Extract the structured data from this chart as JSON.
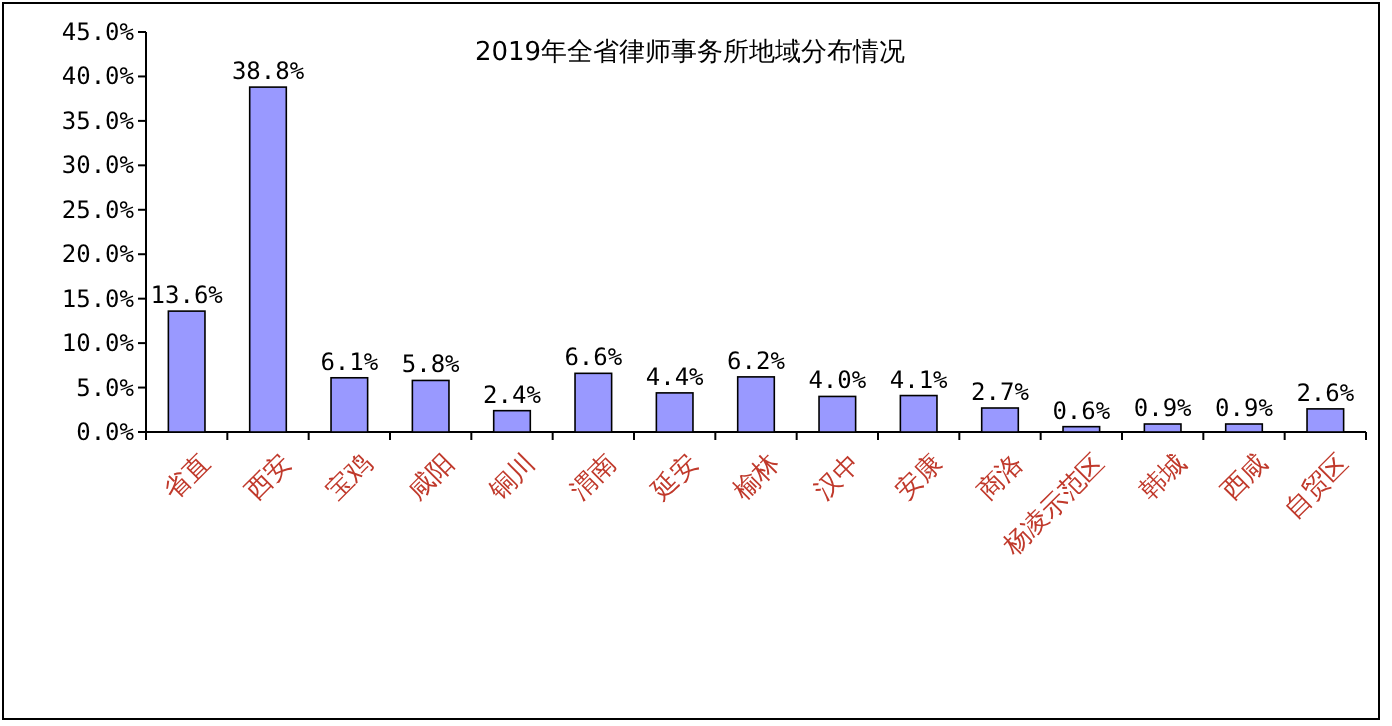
{
  "chart_data": {
    "type": "bar",
    "title": "2019年全省律师事务所地域分布情况",
    "categories": [
      "省直",
      "西安",
      "宝鸡",
      "咸阳",
      "铜川",
      "渭南",
      "延安",
      "榆林",
      "汉中",
      "安康",
      "商洛",
      "杨凌示范区",
      "韩城",
      "西咸",
      "自贸区"
    ],
    "values": [
      13.6,
      38.8,
      6.1,
      5.8,
      2.4,
      6.6,
      4.4,
      6.2,
      4.0,
      4.1,
      2.7,
      0.6,
      0.9,
      0.9,
      2.6
    ],
    "value_labels": [
      "13.6%",
      "38.8%",
      "6.1%",
      "5.8%",
      "2.4%",
      "6.6%",
      "4.4%",
      "6.2%",
      "4.0%",
      "4.1%",
      "2.7%",
      "0.6%",
      "0.9%",
      "0.9%",
      "2.6%"
    ],
    "color": "#9999ff",
    "ylim": [
      0,
      45
    ],
    "yticks": [
      {
        "value": 0,
        "label": "0.0%"
      },
      {
        "value": 5,
        "label": "5.0%"
      },
      {
        "value": 10,
        "label": "10.0%"
      },
      {
        "value": 15,
        "label": "15.0%"
      },
      {
        "value": 20,
        "label": "20.0%"
      },
      {
        "value": 25,
        "label": "25.0%"
      },
      {
        "value": 30,
        "label": "30.0%"
      },
      {
        "value": 35,
        "label": "35.0%"
      },
      {
        "value": 40,
        "label": "40.0%"
      },
      {
        "value": 45,
        "label": "45.0%"
      }
    ]
  }
}
